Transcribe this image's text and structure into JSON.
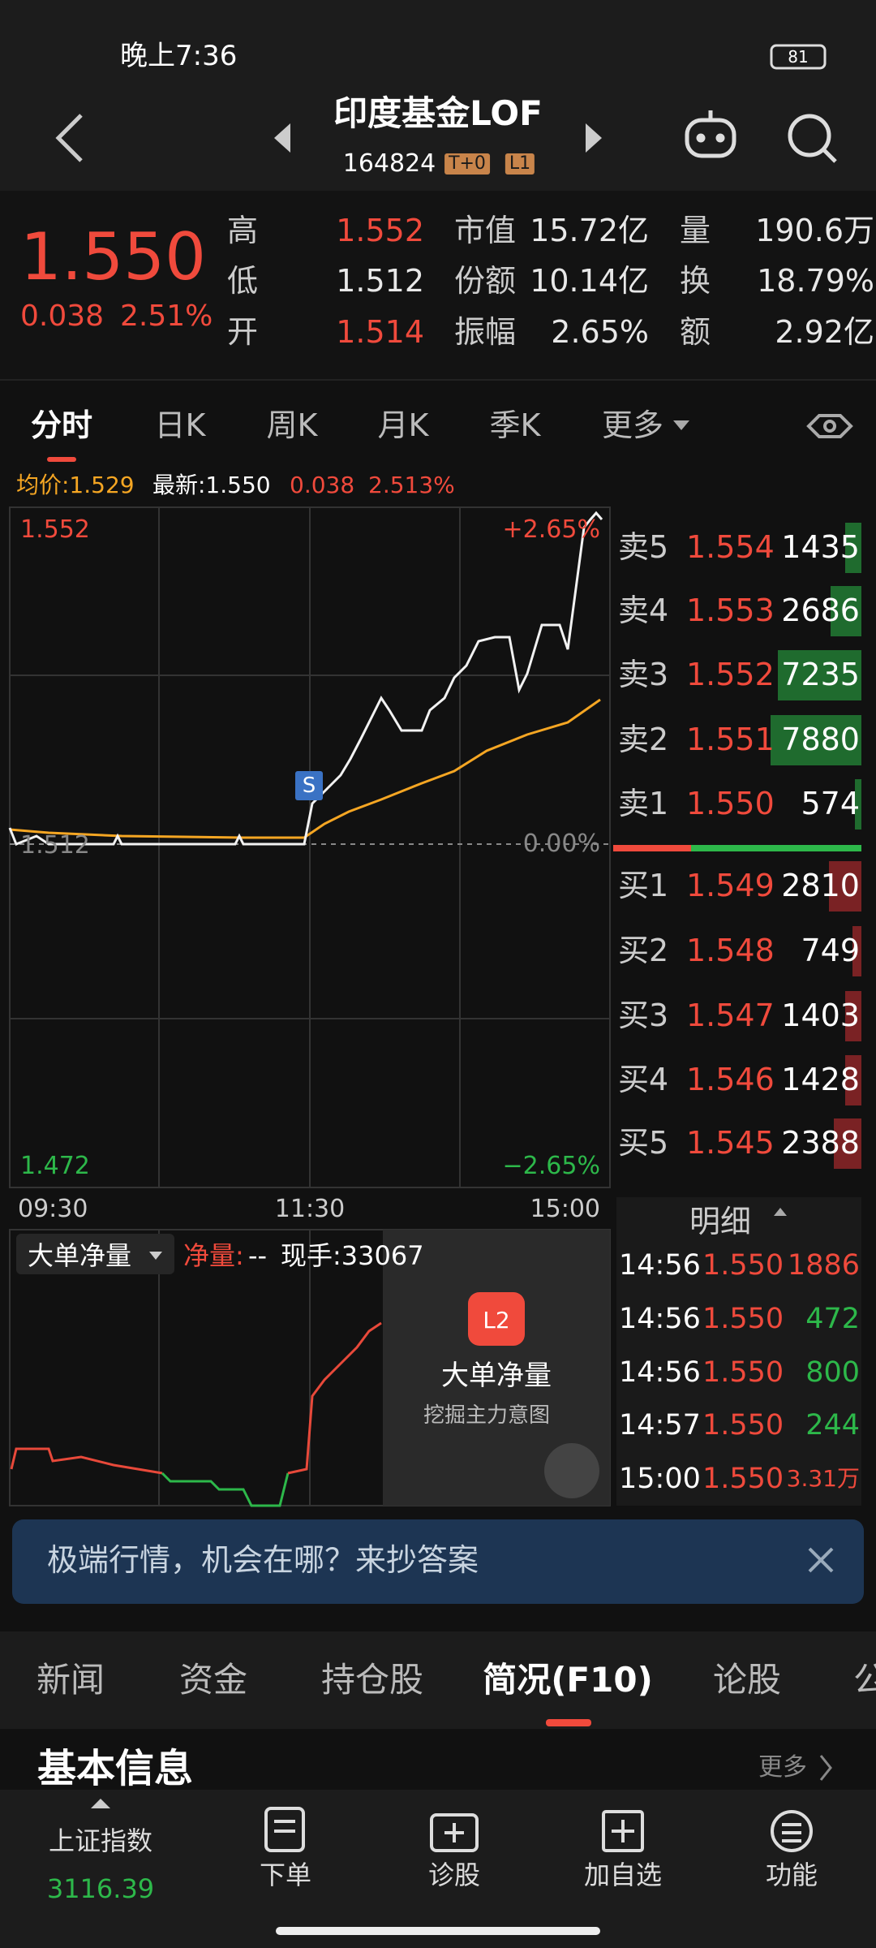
{
  "status": {
    "time": "晚上7:36",
    "battery": "81"
  },
  "header": {
    "title": "印度基金LOF",
    "code": "164824",
    "badges": [
      "T+0",
      "L1"
    ]
  },
  "quote": {
    "price": "1.550",
    "change": "0.038",
    "change_pct": "2.51%",
    "stats": [
      {
        "label": "高",
        "value": "1.552"
      },
      {
        "label": "低",
        "value": "1.512"
      },
      {
        "label": "开",
        "value": "1.514"
      },
      {
        "label": "市值",
        "value": "15.72亿"
      },
      {
        "label": "份额",
        "value": "10.14亿"
      },
      {
        "label": "振幅",
        "value": "2.65%"
      },
      {
        "label": "量",
        "value": "190.6万"
      },
      {
        "label": "换",
        "value": "18.79%"
      },
      {
        "label": "额",
        "value": "2.92亿"
      }
    ]
  },
  "tabs": [
    "分时",
    "日K",
    "周K",
    "月K",
    "季K",
    "更多"
  ],
  "info": {
    "avg": "均价:1.529",
    "latest": "最新:1.550",
    "change": "0.038",
    "change_pct": "2.513%"
  },
  "chart": {
    "high": "1.552",
    "high_pct": "+2.65%",
    "base": "1.512",
    "base_pct": "0.00%",
    "low": "1.472",
    "low_pct": "−2.65%",
    "times": [
      "09:30",
      "11:30",
      "15:00"
    ]
  },
  "order_book": [
    {
      "side": "卖5",
      "price": "1.554",
      "volume": 1435
    },
    {
      "side": "卖4",
      "price": "1.553",
      "volume": 2686
    },
    {
      "side": "卖3",
      "price": "1.552",
      "volume": 7235
    },
    {
      "side": "卖2",
      "price": "1.551",
      "volume": 7880
    },
    {
      "side": "卖1",
      "price": "1.550",
      "volume": 574
    },
    {
      "side": "买1",
      "price": "1.549",
      "volume": 2810
    },
    {
      "side": "买2",
      "price": "1.548",
      "volume": 749
    },
    {
      "side": "买3",
      "price": "1.547",
      "volume": 1403
    },
    {
      "side": "买4",
      "price": "1.546",
      "volume": 1428
    },
    {
      "side": "买5",
      "price": "1.545",
      "volume": 2388
    }
  ],
  "detail": {
    "title": "明细",
    "rows": [
      {
        "time": "14:56",
        "price": "1.550",
        "volume": "1886",
        "color": "#f04a3c"
      },
      {
        "time": "14:56",
        "price": "1.550",
        "volume": "472",
        "color": "#2db84a"
      },
      {
        "time": "14:56",
        "price": "1.550",
        "volume": "800",
        "color": "#2db84a"
      },
      {
        "time": "14:57",
        "price": "1.550",
        "volume": "244",
        "color": "#2db84a"
      },
      {
        "time": "15:00",
        "price": "1.550",
        "volume": "3.31万",
        "color": "#f04a3c"
      }
    ]
  },
  "net_volume": {
    "selector": "大单净量",
    "label": "净量:",
    "value": "--",
    "current": "现手:33067",
    "promo_title": "大单净量",
    "promo_subtitle": "挖掘主力意图"
  },
  "banner": "极端行情，机会在哪？来抄答案",
  "section_tabs": [
    "新闻",
    "资金",
    "持仓股",
    "简况(F10)",
    "论股",
    "公"
  ],
  "section": {
    "title": "基本信息",
    "more": "更多"
  },
  "nav": {
    "index_name": "上证指数",
    "index_value": "3116.39",
    "items": [
      "下单",
      "诊股",
      "加自选",
      "功能"
    ]
  }
}
